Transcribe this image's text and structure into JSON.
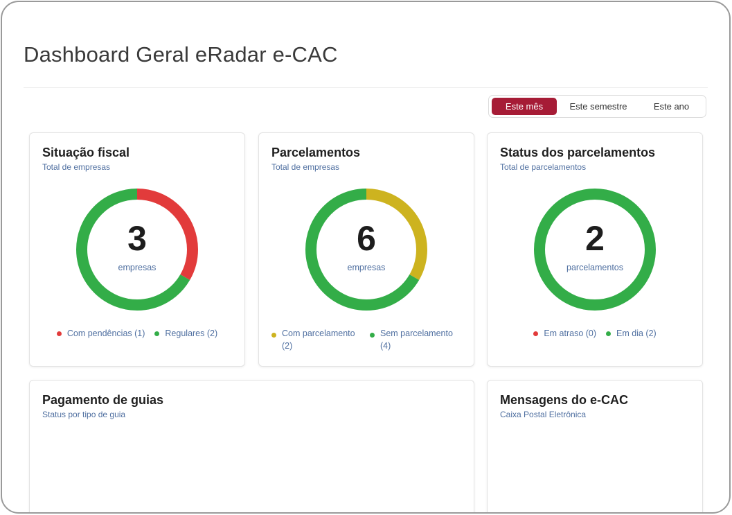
{
  "page": {
    "title": "Dashboard Geral eRadar e-CAC"
  },
  "period_filter": {
    "options": [
      "Este mês",
      "Este semestre",
      "Este ano"
    ],
    "selected": "Este mês",
    "active_color": "#a61c36"
  },
  "colors": {
    "red": "#e23b3b",
    "green": "#33ad48",
    "yellow": "#cdb31f"
  },
  "cards": {
    "situacao_fiscal": {
      "title": "Situação fiscal",
      "subtitle": "Total de empresas",
      "total": "3",
      "unit": "empresas",
      "segments": [
        {
          "label": "Com pendências (1)",
          "value": 1,
          "color": "#e23b3b"
        },
        {
          "label": "Regulares (2)",
          "value": 2,
          "color": "#33ad48"
        }
      ]
    },
    "parcelamentos": {
      "title": "Parcelamentos",
      "subtitle": "Total de empresas",
      "total": "6",
      "unit": "empresas",
      "segments": [
        {
          "label": "Com parcelamento (2)",
          "value": 2,
          "color": "#cdb31f"
        },
        {
          "label": "Sem parcelamento (4)",
          "value": 4,
          "color": "#33ad48"
        }
      ]
    },
    "status_parcelamentos": {
      "title": "Status dos parcelamentos",
      "subtitle": "Total de parcelamentos",
      "total": "2",
      "unit": "parcelamentos",
      "segments": [
        {
          "label": "Em atraso (0)",
          "value": 0,
          "color": "#e23b3b"
        },
        {
          "label": "Em dia (2)",
          "value": 2,
          "color": "#33ad48"
        }
      ]
    },
    "pagamento_guias": {
      "title": "Pagamento de guias",
      "subtitle": "Status por tipo de guia"
    },
    "mensagens": {
      "title": "Mensagens do e-CAC",
      "subtitle": "Caixa Postal Eletrônica"
    }
  }
}
